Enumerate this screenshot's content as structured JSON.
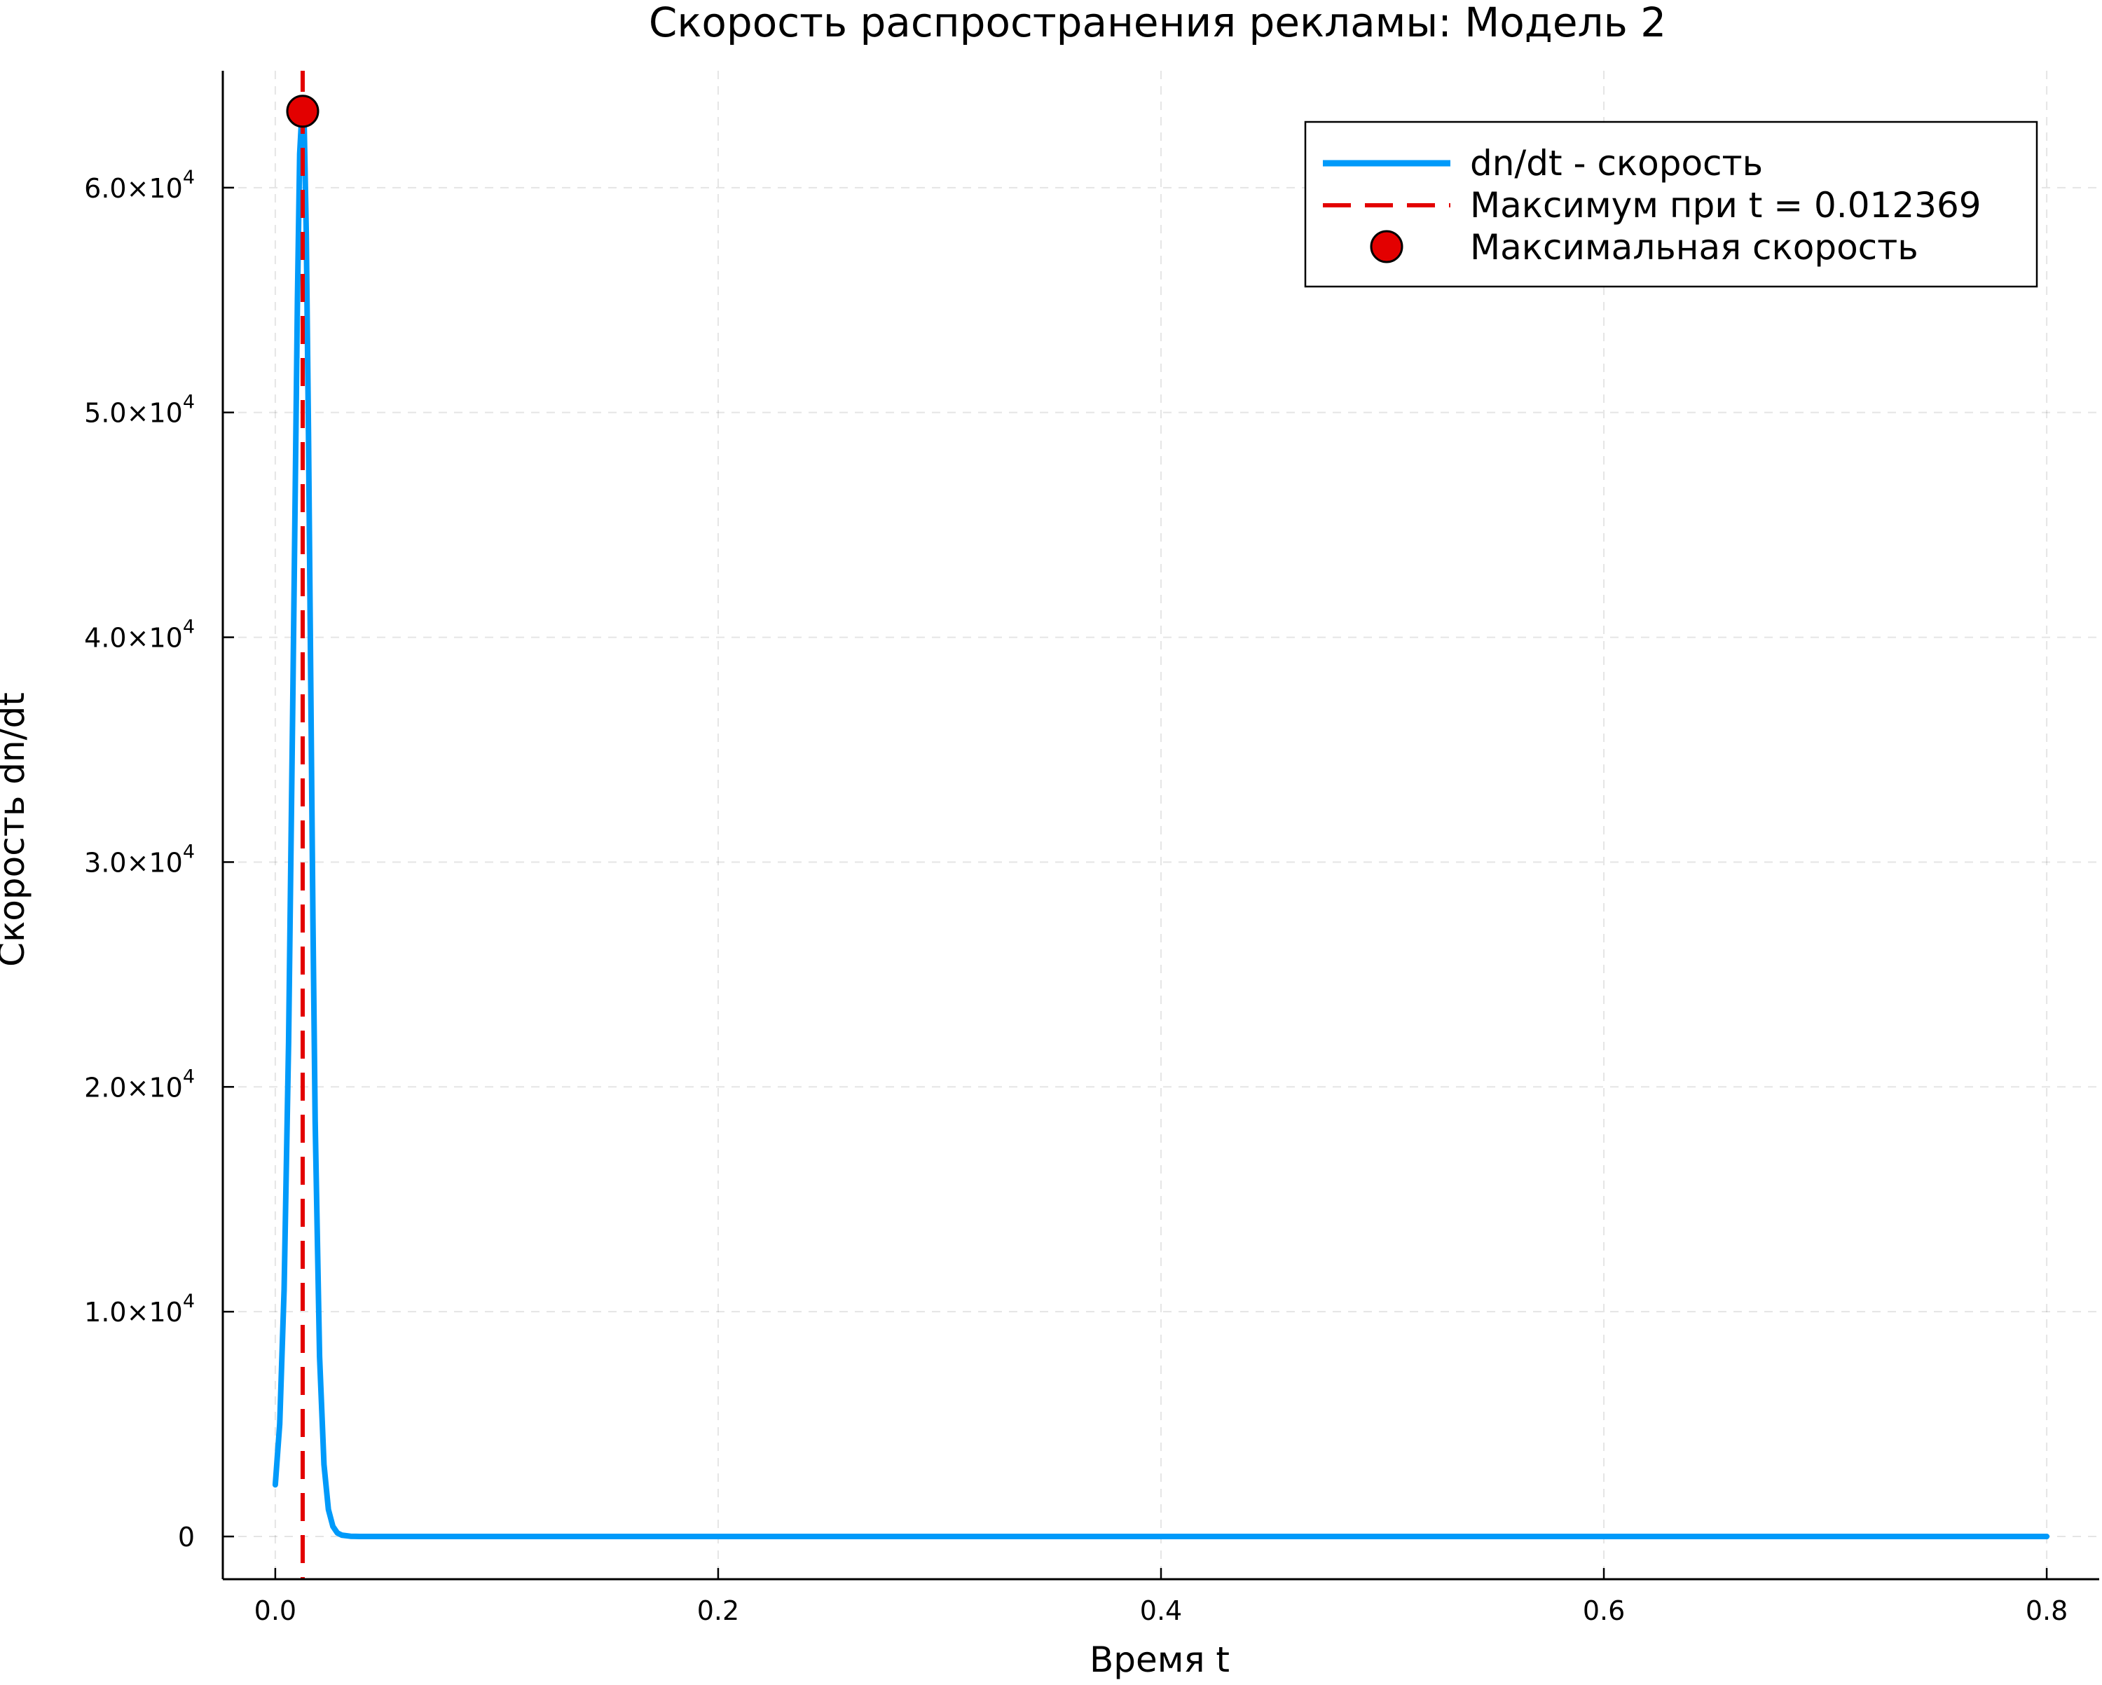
{
  "chart_data": {
    "type": "line",
    "title": "Скорость распространения рекламы: Модель 2",
    "xlabel": "Время t",
    "ylabel": "Скорость dn/dt",
    "xlim": [
      -0.0237,
      0.8237
    ],
    "ylim": [
      -1900,
      65200
    ],
    "grid": true,
    "legend_position": "top-right",
    "x_ticks": [
      {
        "value": 0.0,
        "label": "0.0"
      },
      {
        "value": 0.2,
        "label": "0.2"
      },
      {
        "value": 0.4,
        "label": "0.4"
      },
      {
        "value": 0.6,
        "label": "0.6"
      },
      {
        "value": 0.8,
        "label": "0.8"
      }
    ],
    "y_ticks": [
      {
        "value": 0,
        "mantissa": "0",
        "exponent": ""
      },
      {
        "value": 10000,
        "mantissa": "1.0×10",
        "exponent": "4"
      },
      {
        "value": 20000,
        "mantissa": "2.0×10",
        "exponent": "4"
      },
      {
        "value": 30000,
        "mantissa": "3.0×10",
        "exponent": "4"
      },
      {
        "value": 40000,
        "mantissa": "4.0×10",
        "exponent": "4"
      },
      {
        "value": 50000,
        "mantissa": "5.0×10",
        "exponent": "4"
      },
      {
        "value": 60000,
        "mantissa": "6.0×10",
        "exponent": "4"
      }
    ],
    "series": [
      {
        "name": "dn/dt - скорость",
        "kind": "line",
        "color": "#009AFA",
        "x": [
          0.0,
          0.002,
          0.004,
          0.006,
          0.008,
          0.01,
          0.011,
          0.012,
          0.012369,
          0.013,
          0.014,
          0.015,
          0.016,
          0.017,
          0.018,
          0.02,
          0.022,
          0.024,
          0.026,
          0.028,
          0.03,
          0.034,
          0.038,
          0.045,
          0.1,
          0.2,
          0.3,
          0.4,
          0.5,
          0.6,
          0.7,
          0.8
        ],
        "y": [
          2300,
          5000,
          11000,
          22000,
          38000,
          55000,
          61500,
          63300,
          63400,
          63000,
          58000,
          49000,
          38000,
          27500,
          18500,
          8000,
          3200,
          1200,
          450,
          160,
          60,
          10,
          2,
          0,
          0,
          0,
          0,
          0,
          0,
          0,
          0,
          0
        ]
      },
      {
        "name": "Максимум при t = 0.012369",
        "kind": "vline",
        "color": "#E30000",
        "x": 0.012369
      },
      {
        "name": "Максимальная скорость",
        "kind": "point",
        "color": "#E30000",
        "x": 0.012369,
        "y": 63400
      }
    ]
  }
}
